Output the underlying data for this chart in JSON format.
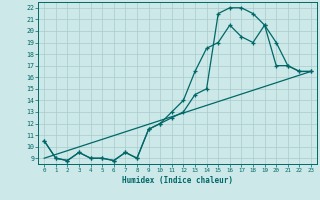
{
  "title": "",
  "xlabel": "Humidex (Indice chaleur)",
  "bg_color": "#cce8e8",
  "grid_color": "#aacccc",
  "line_color": "#006868",
  "xlim": [
    -0.5,
    23.5
  ],
  "ylim": [
    8.5,
    22.5
  ],
  "xticks": [
    0,
    1,
    2,
    3,
    4,
    5,
    6,
    7,
    8,
    9,
    10,
    11,
    12,
    13,
    14,
    15,
    16,
    17,
    18,
    19,
    20,
    21,
    22,
    23
  ],
  "yticks": [
    9,
    10,
    11,
    12,
    13,
    14,
    15,
    16,
    17,
    18,
    19,
    20,
    21,
    22
  ],
  "line1_x": [
    0,
    1,
    2,
    3,
    4,
    5,
    6,
    7,
    8,
    9,
    10,
    11,
    12,
    13,
    14,
    15,
    16,
    17,
    18,
    19,
    20,
    21,
    22,
    23
  ],
  "line1_y": [
    10.5,
    9.0,
    8.8,
    9.5,
    9.0,
    9.0,
    8.8,
    9.5,
    9.0,
    11.5,
    12.0,
    13.0,
    14.0,
    16.5,
    18.5,
    19.0,
    20.5,
    19.5,
    19.0,
    20.5,
    19.0,
    17.0,
    16.5,
    16.5
  ],
  "line2_x": [
    0,
    1,
    2,
    3,
    4,
    5,
    6,
    7,
    8,
    9,
    10,
    11,
    12,
    13,
    14,
    15,
    16,
    17,
    18,
    19,
    20,
    21,
    22,
    23
  ],
  "line2_y": [
    10.5,
    9.0,
    8.8,
    9.5,
    9.0,
    9.0,
    8.8,
    9.5,
    9.0,
    11.5,
    12.0,
    12.5,
    13.0,
    14.5,
    15.0,
    21.5,
    22.0,
    22.0,
    21.5,
    20.5,
    17.0,
    17.0,
    16.5,
    16.5
  ],
  "line3_x": [
    0,
    23
  ],
  "line3_y": [
    9.0,
    16.5
  ]
}
